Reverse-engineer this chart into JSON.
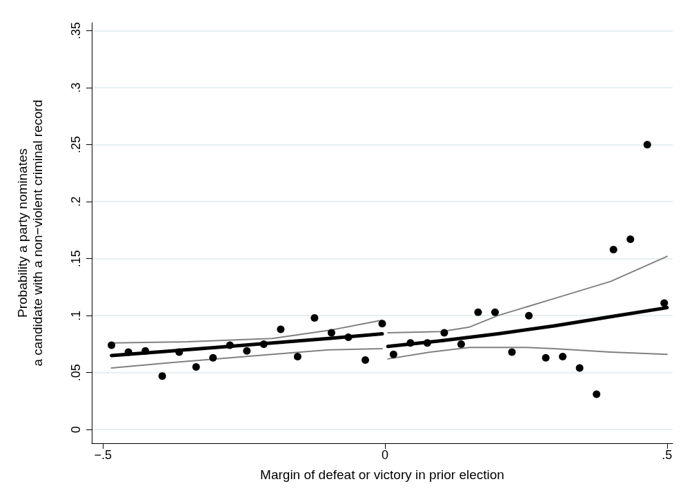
{
  "chart_data": {
    "type": "scatter",
    "xlabel": "Margin of defeat or victory in prior election",
    "ylabel": "Probability a party nominates\na candidate with a non−violent criminal record",
    "xlim": [
      -0.52,
      0.51
    ],
    "xticks": [
      {
        "value": -0.5,
        "label": "−.5"
      },
      0,
      {
        "value": 0.5,
        "label": ".5"
      }
    ],
    "ylim": [
      -0.012,
      0.357
    ],
    "yticks": [
      0,
      {
        "value": 0.05,
        "label": ".05"
      },
      {
        "value": 0.1,
        "label": ".1"
      },
      {
        "value": 0.15,
        "label": ".15"
      },
      {
        "value": 0.2,
        "label": ".2"
      },
      {
        "value": 0.25,
        "label": ".25"
      },
      {
        "value": 0.3,
        "label": ".3"
      },
      {
        "value": 0.35,
        "label": ".35"
      }
    ],
    "grid": "y",
    "series": [
      {
        "marker": "circle",
        "color": "#000000",
        "x": [
          -0.485,
          -0.455,
          -0.425,
          -0.395,
          -0.365,
          -0.335,
          -0.305,
          -0.275,
          -0.245,
          -0.215,
          -0.185,
          -0.155,
          -0.125,
          -0.095,
          -0.065,
          -0.035,
          -0.005,
          0.015,
          0.045,
          0.075,
          0.105,
          0.135,
          0.165,
          0.195,
          0.225,
          0.255,
          0.285,
          0.315,
          0.345,
          0.375,
          0.405,
          0.435,
          0.465,
          0.495
        ],
        "values": [
          0.074,
          0.068,
          0.069,
          0.047,
          0.068,
          0.055,
          0.063,
          0.074,
          0.069,
          0.075,
          0.088,
          0.064,
          0.098,
          0.085,
          0.081,
          0.061,
          0.093,
          0.066,
          0.076,
          0.076,
          0.085,
          0.075,
          0.103,
          0.103,
          0.068,
          0.1,
          0.063,
          0.064,
          0.054,
          0.031,
          0.158,
          0.167,
          0.25,
          0.111
        ]
      },
      {
        "type": "line",
        "color": "#000000",
        "marker": "none",
        "x": [
          -0.485,
          -0.3,
          -0.1,
          -0.005
        ],
        "values": [
          0.065,
          0.072,
          0.08,
          0.084
        ]
      },
      {
        "type": "line",
        "color": "#000000",
        "marker": "none",
        "x": [
          0.005,
          0.1,
          0.2,
          0.3,
          0.4,
          0.5
        ],
        "values": [
          0.073,
          0.078,
          0.084,
          0.091,
          0.099,
          0.107
        ]
      },
      {
        "type": "line",
        "color": "#808080",
        "x": [
          -0.485,
          -0.35,
          -0.2,
          -0.1,
          -0.005
        ],
        "marker": "none",
        "values": [
          0.076,
          0.077,
          0.08,
          0.087,
          0.096
        ]
      },
      {
        "type": "line",
        "color": "#808080",
        "x": [
          -0.485,
          -0.35,
          -0.2,
          -0.1,
          -0.005
        ],
        "marker": "none",
        "values": [
          0.054,
          0.06,
          0.066,
          0.07,
          0.071
        ]
      },
      {
        "type": "line",
        "color": "#808080",
        "x": [
          0.005,
          0.1,
          0.15,
          0.2,
          0.3,
          0.4,
          0.5
        ],
        "marker": "none",
        "values": [
          0.085,
          0.086,
          0.09,
          0.1,
          0.115,
          0.13,
          0.152
        ]
      },
      {
        "type": "line",
        "color": "#808080",
        "x": [
          0.005,
          0.08,
          0.15,
          0.25,
          0.3,
          0.4,
          0.5
        ],
        "marker": "none",
        "values": [
          0.062,
          0.068,
          0.072,
          0.072,
          0.071,
          0.068,
          0.066
        ]
      }
    ]
  }
}
